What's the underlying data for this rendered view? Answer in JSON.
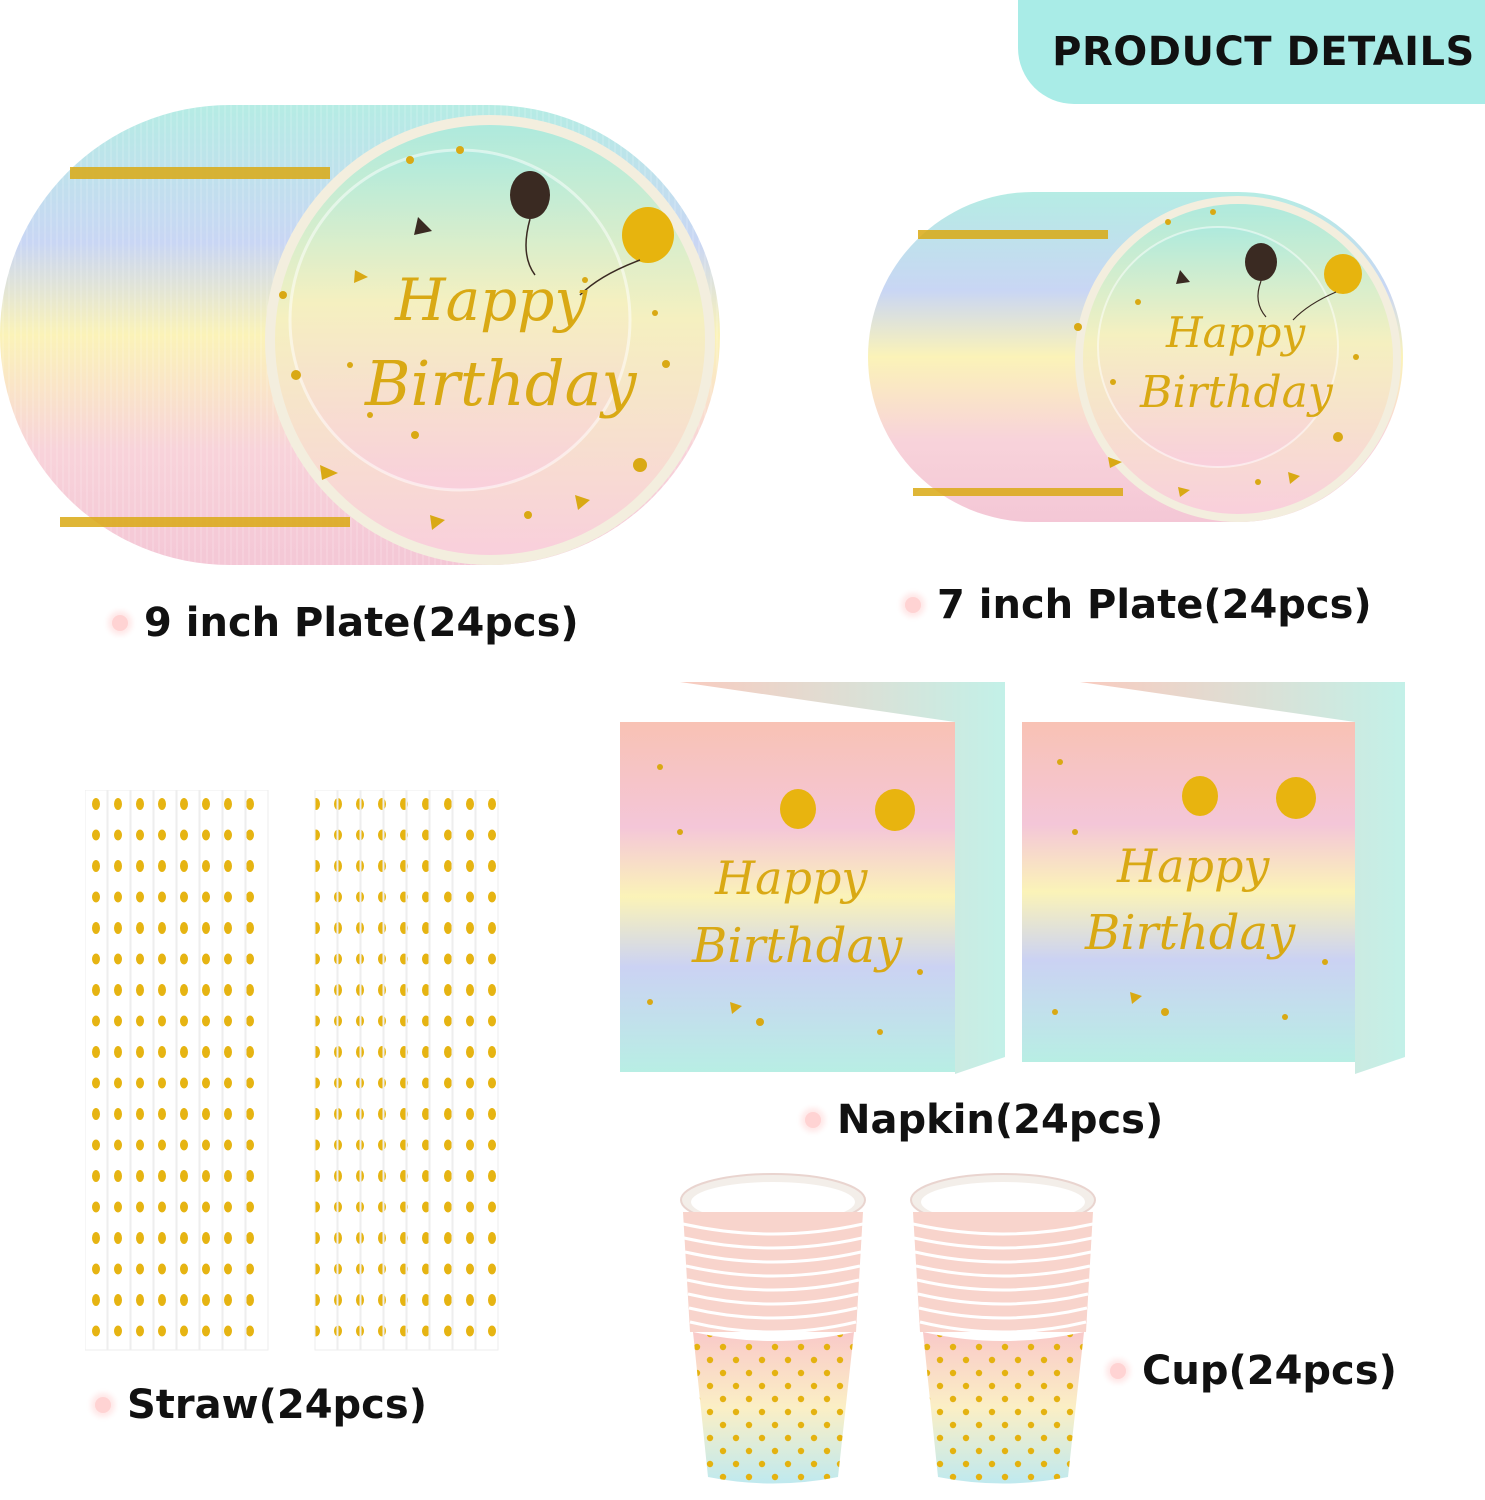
{
  "banner": {
    "title": "PRODUCT DETAILS"
  },
  "products": {
    "plate_9": {
      "label": "9 inch Plate(24pcs)",
      "print_line1": "Happy",
      "print_line2": "Birthday"
    },
    "plate_7": {
      "label": "7 inch Plate(24pcs)",
      "print_line1": "Happy",
      "print_line2": "Birthday"
    },
    "straw": {
      "label": "Straw(24pcs)"
    },
    "napkin": {
      "label": "Napkin(24pcs)",
      "print_line1": "Happy",
      "print_line2": "Birthday"
    },
    "cup": {
      "label": "Cup(24pcs)"
    }
  },
  "colors": {
    "banner": "#a9ece7",
    "mint": "#b8eee4",
    "yellow": "#fbf3b8",
    "pink": "#f9cfd8",
    "peach": "#f8c2b4",
    "lavender": "#cbd2f3",
    "gold": "#d9a914"
  }
}
